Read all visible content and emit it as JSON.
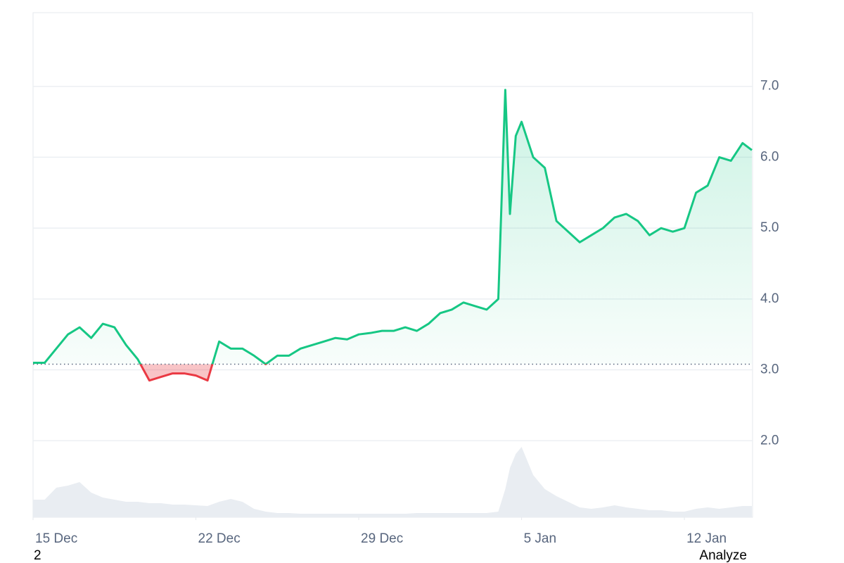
{
  "chart_data": {
    "type": "line",
    "x": [
      0,
      0.5,
      1,
      1.5,
      2,
      2.5,
      3,
      3.5,
      4,
      4.5,
      5,
      5.5,
      6,
      6.5,
      7,
      7.5,
      8,
      8.5,
      9,
      9.5,
      10,
      10.5,
      11,
      11.5,
      12,
      12.5,
      13,
      13.5,
      14,
      14.5,
      15,
      15.5,
      16,
      16.5,
      17,
      17.5,
      18,
      18.5,
      19,
      19.5,
      20,
      20.3,
      20.5,
      20.75,
      21,
      21.5,
      22,
      22.5,
      23,
      23.5,
      24,
      24.5,
      25,
      25.5,
      26,
      26.5,
      27,
      27.5,
      28,
      28.5,
      29,
      29.5,
      30,
      30.5,
      30.9
    ],
    "series": [
      {
        "color": "#16c784",
        "down_color": "#ea3943",
        "values": [
          3.1,
          3.1,
          3.3,
          3.5,
          3.6,
          3.45,
          3.65,
          3.6,
          3.35,
          3.15,
          2.85,
          2.9,
          2.95,
          2.95,
          2.92,
          2.85,
          3.4,
          3.3,
          3.3,
          3.2,
          3.08,
          3.2,
          3.2,
          3.3,
          3.35,
          3.4,
          3.45,
          3.43,
          3.5,
          3.52,
          3.55,
          3.55,
          3.6,
          3.55,
          3.65,
          3.8,
          3.85,
          3.95,
          3.9,
          3.85,
          4.0,
          6.95,
          5.2,
          6.3,
          6.5,
          6.0,
          5.85,
          5.1,
          4.95,
          4.8,
          4.9,
          5.0,
          5.15,
          5.2,
          5.1,
          4.9,
          5.0,
          4.95,
          5.0,
          5.5,
          5.6,
          6.0,
          5.95,
          6.2,
          6.1
        ]
      },
      {
        "color": "#e9edf2",
        "axis": "y2",
        "values": [
          2.5,
          2.5,
          4.2,
          4.5,
          5.0,
          3.5,
          2.8,
          2.5,
          2.2,
          2.2,
          2.0,
          2.0,
          1.8,
          1.8,
          1.7,
          1.6,
          2.2,
          2.6,
          2.2,
          1.2,
          0.8,
          0.6,
          0.6,
          0.5,
          0.5,
          0.5,
          0.5,
          0.5,
          0.5,
          0.5,
          0.5,
          0.5,
          0.5,
          0.6,
          0.6,
          0.6,
          0.6,
          0.6,
          0.6,
          0.6,
          0.8,
          4.0,
          7.0,
          9.0,
          10.0,
          6.0,
          4.0,
          3.0,
          2.2,
          1.4,
          1.2,
          1.4,
          1.7,
          1.4,
          1.2,
          1.0,
          1.0,
          0.8,
          0.8,
          1.2,
          1.4,
          1.2,
          1.4,
          1.6,
          1.6
        ]
      }
    ],
    "baseline": 3.08,
    "xlim": [
      0,
      30.93
    ],
    "xticks": [
      {
        "value": 0,
        "label": "15 Dec"
      },
      {
        "value": 7,
        "label": "22 Dec"
      },
      {
        "value": 14,
        "label": "29 Dec"
      },
      {
        "value": 21,
        "label": "5 Jan"
      },
      {
        "value": 28,
        "label": "12 Jan"
      }
    ],
    "ylim": [
      0.92,
      8.04
    ],
    "yticks": [
      {
        "value": 2,
        "label": "2.0"
      },
      {
        "value": 3,
        "label": "3.0"
      },
      {
        "value": 4,
        "label": "4.0"
      },
      {
        "value": 5,
        "label": "5.0"
      },
      {
        "value": 6,
        "label": "6.0"
      },
      {
        "value": 7,
        "label": "7.0"
      }
    ],
    "y2lim": [
      0,
      12
    ],
    "grid": true
  },
  "footer": {
    "left": "2",
    "right": "Analyze"
  }
}
